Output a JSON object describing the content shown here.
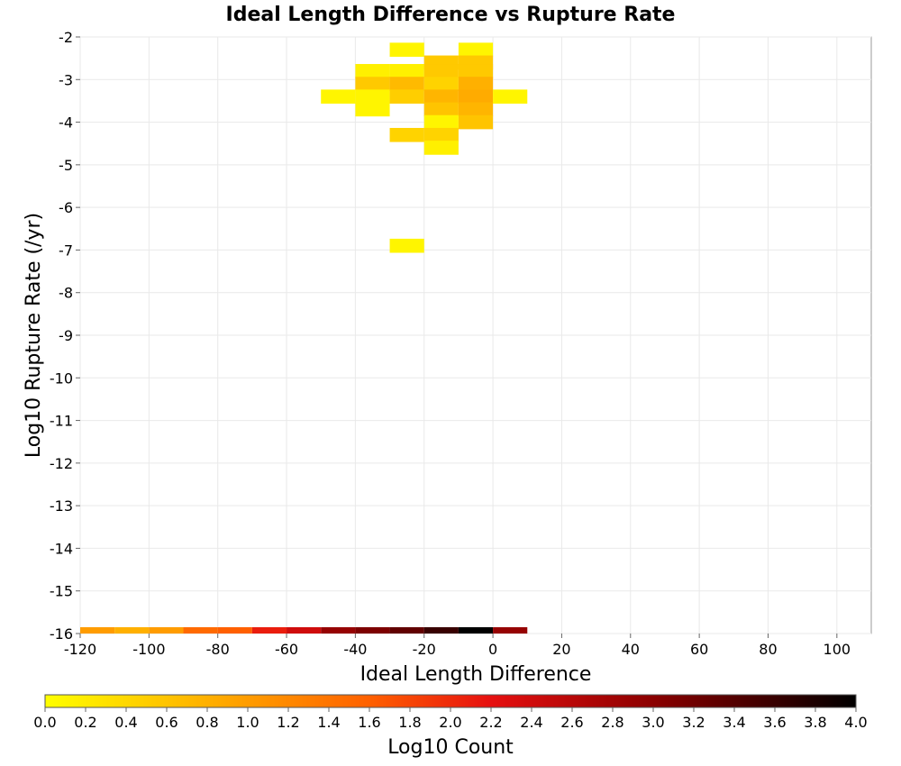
{
  "chart_data": {
    "type": "heatmap",
    "title": "Ideal Length Difference vs Rupture Rate",
    "xlabel": "Ideal Length Difference",
    "ylabel": "Log10 Rupture Rate (/yr)",
    "xlim": [
      -120,
      110
    ],
    "ylim": [
      -16,
      -2
    ],
    "x_ticks": [
      "-120",
      "-100",
      "-80",
      "-60",
      "-40",
      "-20",
      "0",
      "20",
      "40",
      "60",
      "80",
      "100"
    ],
    "y_ticks": [
      "-2",
      "-3",
      "-4",
      "-5",
      "-6",
      "-7",
      "-8",
      "-9",
      "-10",
      "-11",
      "-12",
      "-13",
      "-14",
      "-15",
      "-16"
    ],
    "grid": true,
    "bin_width_x": 10,
    "bin_height_y": 0.33,
    "cells": [
      {
        "x": -25,
        "y": -2.3,
        "value": 0.1
      },
      {
        "x": -5,
        "y": -2.3,
        "value": 0.1
      },
      {
        "x": -15,
        "y": -2.6,
        "value": 0.55
      },
      {
        "x": -5,
        "y": -2.6,
        "value": 0.55
      },
      {
        "x": -35,
        "y": -2.8,
        "value": 0.15
      },
      {
        "x": -25,
        "y": -2.8,
        "value": 0.15
      },
      {
        "x": -15,
        "y": -2.8,
        "value": 0.55
      },
      {
        "x": -5,
        "y": -2.8,
        "value": 0.55
      },
      {
        "x": -35,
        "y": -3.1,
        "value": 0.55
      },
      {
        "x": -25,
        "y": -3.1,
        "value": 0.7
      },
      {
        "x": -15,
        "y": -3.1,
        "value": 0.45
      },
      {
        "x": -5,
        "y": -3.1,
        "value": 0.8
      },
      {
        "x": -45,
        "y": -3.4,
        "value": 0.1
      },
      {
        "x": -35,
        "y": -3.4,
        "value": 0.1
      },
      {
        "x": -25,
        "y": -3.4,
        "value": 0.5
      },
      {
        "x": -15,
        "y": -3.4,
        "value": 0.75
      },
      {
        "x": -5,
        "y": -3.4,
        "value": 0.85
      },
      {
        "x": 5,
        "y": -3.4,
        "value": 0.1
      },
      {
        "x": -35,
        "y": -3.7,
        "value": 0.1
      },
      {
        "x": -15,
        "y": -3.7,
        "value": 0.6
      },
      {
        "x": -5,
        "y": -3.7,
        "value": 0.75
      },
      {
        "x": -15,
        "y": -4.0,
        "value": 0.1
      },
      {
        "x": -5,
        "y": -4.0,
        "value": 0.6
      },
      {
        "x": -25,
        "y": -4.3,
        "value": 0.45
      },
      {
        "x": -15,
        "y": -4.3,
        "value": 0.45
      },
      {
        "x": -15,
        "y": -4.6,
        "value": 0.15
      },
      {
        "x": -25,
        "y": -6.9,
        "value": 0.1
      }
    ],
    "bottom_row": {
      "y": -16,
      "cells": [
        {
          "x": -115,
          "value": 1.0
        },
        {
          "x": -105,
          "value": 0.8
        },
        {
          "x": -95,
          "value": 1.0
        },
        {
          "x": -85,
          "value": 1.5
        },
        {
          "x": -75,
          "value": 1.6
        },
        {
          "x": -65,
          "value": 2.1
        },
        {
          "x": -55,
          "value": 2.4
        },
        {
          "x": -45,
          "value": 2.9
        },
        {
          "x": -35,
          "value": 3.1
        },
        {
          "x": -25,
          "value": 3.3
        },
        {
          "x": -15,
          "value": 3.6
        },
        {
          "x": -5,
          "value": 4.0
        },
        {
          "x": 5,
          "value": 2.9
        }
      ]
    },
    "colorbar": {
      "label": "Log10 Count",
      "min": 0.0,
      "max": 4.0,
      "ticks": [
        "0.0",
        "0.2",
        "0.4",
        "0.6",
        "0.8",
        "1.0",
        "1.2",
        "1.4",
        "1.6",
        "1.8",
        "2.0",
        "2.2",
        "2.4",
        "2.6",
        "2.8",
        "3.0",
        "3.2",
        "3.4",
        "3.6",
        "3.8",
        "4.0"
      ],
      "colors": [
        "#ffff00",
        "#ffb000",
        "#ff6000",
        "#e61010",
        "#8b0000",
        "#000000"
      ]
    }
  }
}
